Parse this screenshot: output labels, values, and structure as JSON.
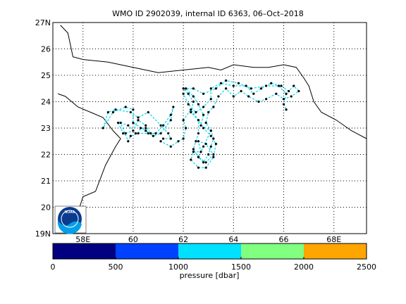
{
  "map": {
    "title": "WMO ID 2902039, internal ID 6363, 06–Oct–2018",
    "lat_ticks": [
      "19N",
      "20",
      "21",
      "22",
      "23",
      "24",
      "25",
      "26",
      "27N"
    ],
    "lon_ticks": [
      "58E",
      "60",
      "62",
      "64",
      "66",
      "68E"
    ],
    "lon_range": [
      56.8,
      69.3
    ],
    "lat_range": [
      19,
      27
    ],
    "grid": true,
    "logo_text": "NOAA",
    "track": [
      [
        59.4,
        23.2
      ],
      [
        59.6,
        22.8
      ],
      [
        59.7,
        22.8
      ],
      [
        60.0,
        22.9
      ],
      [
        60.2,
        23.3
      ],
      [
        60.5,
        23.1
      ],
      [
        60.7,
        22.8
      ],
      [
        60.1,
        22.8
      ],
      [
        59.8,
        23.1
      ],
      [
        59.5,
        23.2
      ],
      [
        59.8,
        22.5
      ],
      [
        59.9,
        22.7
      ],
      [
        60.2,
        22.8
      ],
      [
        60.3,
        23.0
      ],
      [
        60.5,
        23.0
      ],
      [
        60.6,
        22.8
      ],
      [
        60.9,
        22.8
      ],
      [
        61.2,
        23.1
      ],
      [
        61.5,
        23.5
      ],
      [
        61.6,
        23.8
      ],
      [
        61.5,
        23.3
      ],
      [
        61.1,
        22.8
      ],
      [
        60.8,
        22.7
      ],
      [
        60.5,
        22.9
      ],
      [
        60.0,
        23.2
      ],
      [
        60.0,
        23.7
      ],
      [
        59.7,
        23.8
      ],
      [
        59.2,
        23.6
      ],
      [
        58.8,
        23.0
      ],
      [
        59.0,
        23.6
      ],
      [
        59.3,
        23.7
      ],
      [
        59.9,
        23.6
      ],
      [
        60.2,
        23.4
      ],
      [
        60.6,
        23.6
      ],
      [
        61.1,
        23.1
      ],
      [
        61.4,
        22.8
      ],
      [
        61.5,
        22.6
      ],
      [
        61.2,
        22.6
      ],
      [
        61.1,
        22.5
      ],
      [
        61.5,
        22.3
      ],
      [
        61.8,
        22.5
      ],
      [
        62.0,
        22.6
      ],
      [
        62.1,
        23.0
      ],
      [
        62.0,
        23.3
      ],
      [
        62.3,
        23.7
      ],
      [
        62.6,
        23.3
      ],
      [
        62.6,
        22.8
      ],
      [
        62.5,
        22.5
      ],
      [
        62.4,
        22.2
      ],
      [
        62.6,
        21.9
      ],
      [
        62.8,
        21.7
      ],
      [
        63.0,
        22.0
      ],
      [
        63.1,
        22.3
      ],
      [
        63.2,
        22.6
      ],
      [
        63.1,
        22.9
      ],
      [
        62.7,
        23.1
      ],
      [
        62.8,
        23.5
      ],
      [
        62.6,
        23.9
      ],
      [
        62.4,
        24.2
      ],
      [
        62.1,
        24.5
      ],
      [
        62.0,
        24.3
      ],
      [
        62.2,
        23.9
      ],
      [
        62.5,
        23.6
      ],
      [
        62.8,
        23.8
      ],
      [
        63.1,
        24.1
      ],
      [
        63.1,
        24.5
      ],
      [
        63.5,
        24.7
      ],
      [
        64.0,
        24.6
      ],
      [
        64.5,
        24.6
      ],
      [
        64.8,
        24.3
      ],
      [
        65.1,
        24.5
      ],
      [
        65.5,
        24.7
      ],
      [
        65.9,
        24.6
      ],
      [
        66.2,
        24.4
      ],
      [
        66.4,
        24.6
      ],
      [
        66.6,
        24.4
      ],
      [
        66.3,
        24.2
      ],
      [
        66.0,
        24.1
      ],
      [
        65.7,
        24.3
      ],
      [
        65.3,
        24.1
      ],
      [
        65.0,
        24.0
      ],
      [
        64.6,
        24.2
      ],
      [
        64.3,
        24.4
      ],
      [
        64.0,
        24.2
      ],
      [
        63.7,
        24.5
      ],
      [
        63.4,
        24.2
      ],
      [
        63.2,
        23.8
      ],
      [
        63.0,
        23.6
      ],
      [
        62.9,
        23.2
      ],
      [
        63.1,
        22.9
      ],
      [
        62.8,
        22.3
      ],
      [
        62.6,
        21.9
      ],
      [
        62.9,
        21.7
      ],
      [
        63.2,
        22.0
      ],
      [
        62.9,
        22.4
      ],
      [
        62.6,
        22.5
      ],
      [
        62.7,
        22.1
      ],
      [
        62.4,
        22.1
      ],
      [
        62.3,
        21.8
      ],
      [
        62.6,
        21.5
      ],
      [
        62.9,
        21.5
      ],
      [
        63.2,
        21.9
      ],
      [
        63.3,
        22.4
      ],
      [
        63.1,
        22.7
      ],
      [
        62.8,
        23.0
      ],
      [
        62.6,
        23.3
      ],
      [
        62.3,
        23.6
      ],
      [
        62.4,
        24.0
      ],
      [
        62.2,
        24.3
      ],
      [
        62.0,
        24.5
      ],
      [
        62.4,
        24.5
      ],
      [
        62.8,
        24.3
      ],
      [
        63.3,
        24.5
      ],
      [
        63.7,
        24.8
      ],
      [
        64.2,
        24.7
      ],
      [
        64.7,
        24.5
      ],
      [
        65.3,
        24.6
      ],
      [
        65.8,
        24.6
      ],
      [
        66.1,
        24.3
      ],
      [
        66.0,
        23.9
      ],
      [
        66.1,
        23.7
      ]
    ]
  },
  "colorbar": {
    "label": "pressure [dbar]",
    "ticks": [
      "0",
      "500",
      "1000",
      "1500",
      "2000",
      "2500"
    ],
    "colors": [
      "#000080",
      "#0040ff",
      "#00e0ff",
      "#80ff80",
      "#ffa500"
    ]
  }
}
